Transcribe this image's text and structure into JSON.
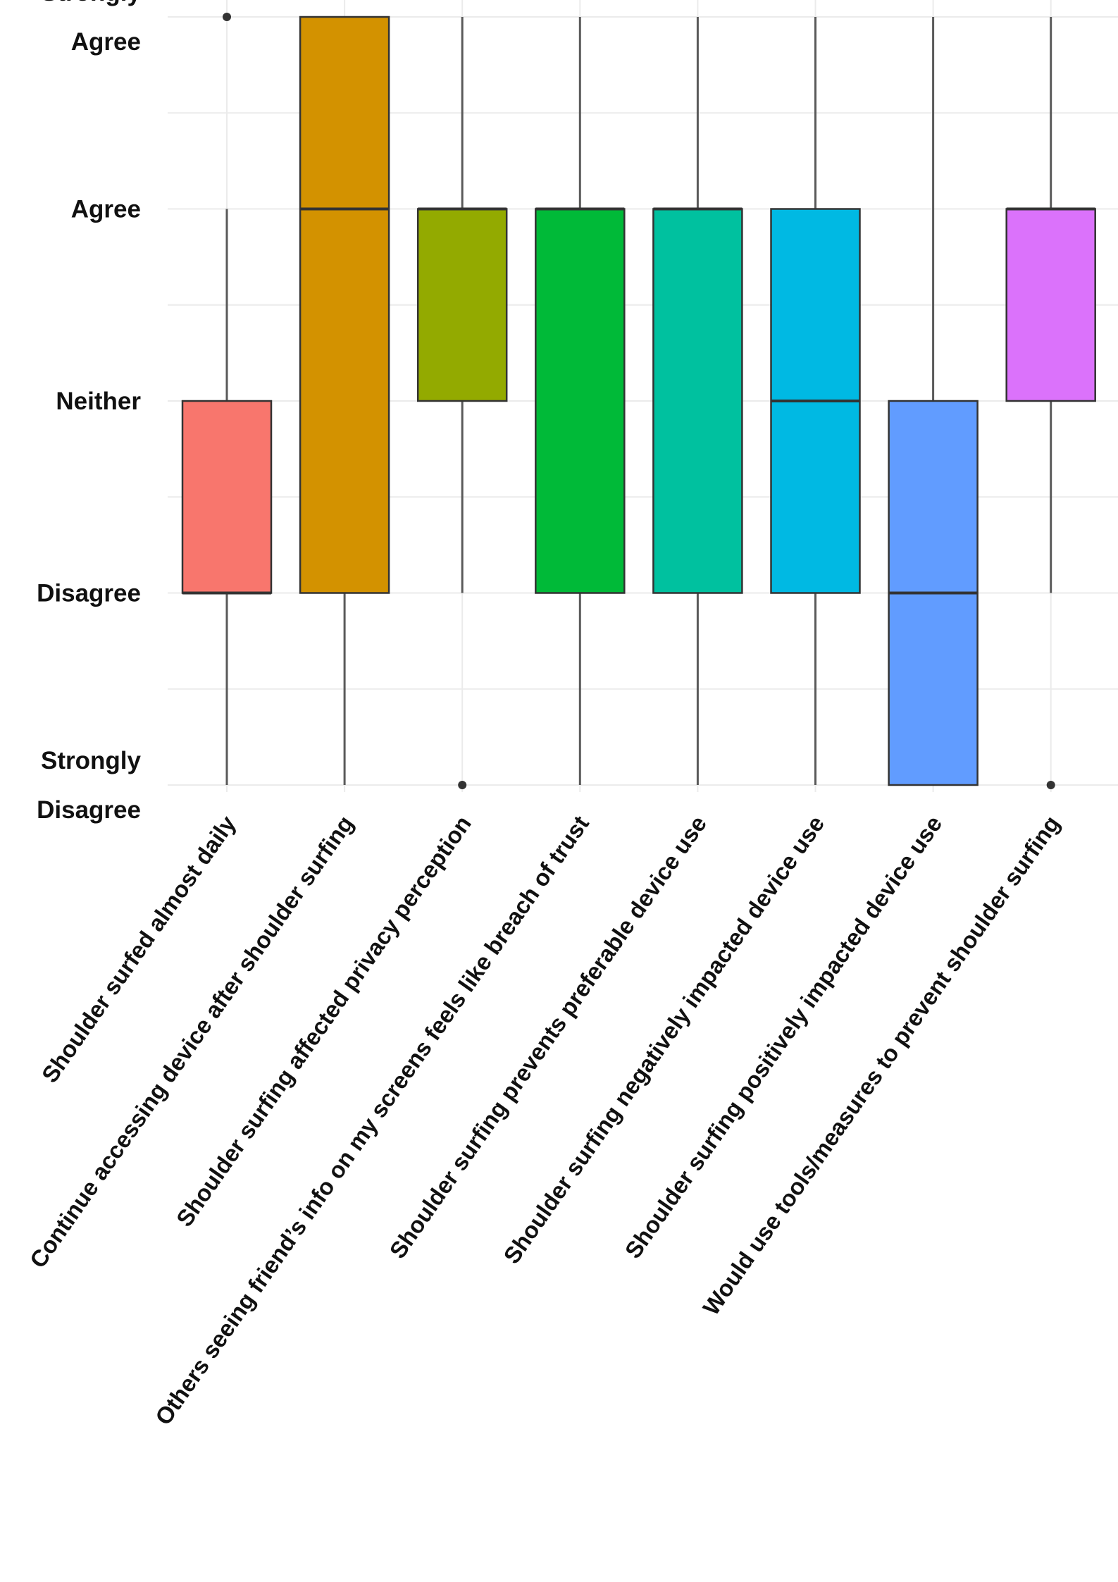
{
  "chart_data": {
    "type": "boxplot",
    "title": "",
    "xlabel": "",
    "ylabel": "",
    "y_scale": [
      1,
      5
    ],
    "y_ticks": [
      {
        "value": 5,
        "lines": [
          "Strongly",
          "Agree"
        ]
      },
      {
        "value": 4,
        "lines": [
          "Agree"
        ]
      },
      {
        "value": 3,
        "lines": [
          "Neither"
        ]
      },
      {
        "value": 2,
        "lines": [
          "Disagree"
        ]
      },
      {
        "value": 1,
        "lines": [
          "Strongly",
          "Disagree"
        ]
      }
    ],
    "grid": true,
    "legend": "none",
    "series": [
      {
        "name": "Shoulder surfed almost daily",
        "color": "#F8766D",
        "whisker_low": 1,
        "q1": 2,
        "median": 2,
        "q3": 3,
        "whisker_high": 4,
        "outliers": [
          5
        ]
      },
      {
        "name": "Continue accessing device after shoulder surfing",
        "color": "#D39200",
        "whisker_low": 1,
        "q1": 2,
        "median": 4,
        "q3": 5,
        "whisker_high": 5,
        "outliers": []
      },
      {
        "name": "Shoulder surfing affected privacy perception",
        "color": "#93AA00",
        "whisker_low": 2,
        "q1": 3,
        "median": 4,
        "q3": 4,
        "whisker_high": 5,
        "outliers": [
          1
        ]
      },
      {
        "name": "Others seeing friend’s info on my screens feels like breach of trust",
        "color": "#00BA38",
        "whisker_low": 1,
        "q1": 2,
        "median": 4,
        "q3": 4,
        "whisker_high": 5,
        "outliers": []
      },
      {
        "name": "Shoulder surfing prevents preferable device use",
        "color": "#00C19F",
        "whisker_low": 1,
        "q1": 2,
        "median": 4,
        "q3": 4,
        "whisker_high": 5,
        "outliers": []
      },
      {
        "name": "Shoulder surfing negatively impacted device use",
        "color": "#00B9E3",
        "whisker_low": 1,
        "q1": 2,
        "median": 3,
        "q3": 4,
        "whisker_high": 5,
        "outliers": []
      },
      {
        "name": "Shoulder surfing positively impacted device use",
        "color": "#619CFF",
        "whisker_low": 1,
        "q1": 1,
        "median": 2,
        "q3": 3,
        "whisker_high": 5,
        "outliers": []
      },
      {
        "name": "Would use tools/measures to prevent shoulder surfing",
        "color": "#DB72FB",
        "whisker_low": 2,
        "q1": 3,
        "median": 4,
        "q3": 4,
        "whisker_high": 5,
        "outliers": [
          1
        ]
      }
    ]
  }
}
